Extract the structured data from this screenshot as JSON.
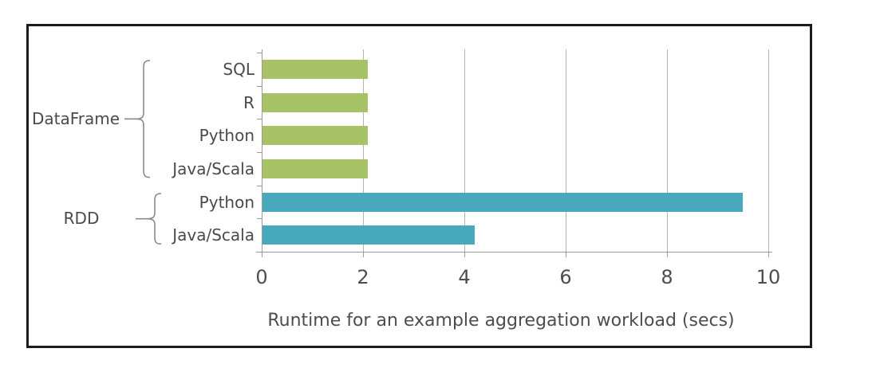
{
  "chart_data": {
    "type": "bar",
    "orientation": "horizontal",
    "xlabel": "Runtime for an example aggregation workload (secs)",
    "xlim": [
      0,
      10
    ],
    "x_ticks": [
      0,
      2,
      4,
      6,
      8,
      10
    ],
    "grid": true,
    "legend": "none",
    "groups": [
      {
        "label": "DataFrame",
        "color": "#a8c266",
        "bars": [
          {
            "label": "SQL",
            "value": 2.1
          },
          {
            "label": "R",
            "value": 2.1
          },
          {
            "label": "Python",
            "value": 2.1
          },
          {
            "label": "Java/Scala",
            "value": 2.1
          }
        ]
      },
      {
        "label": "RDD",
        "color": "#48a8bc",
        "bars": [
          {
            "label": "Python",
            "value": 9.5
          },
          {
            "label": "Java/Scala",
            "value": 4.2
          }
        ]
      }
    ]
  },
  "colors": {
    "dataframe_bar": "#a8c266",
    "rdd_bar": "#48a8bc",
    "text": "#4a4a4a",
    "axis": "#9b9b9b",
    "gridline": "#b5b2b2",
    "frame_border": "#1c1c1c",
    "background": "#ffffff"
  }
}
